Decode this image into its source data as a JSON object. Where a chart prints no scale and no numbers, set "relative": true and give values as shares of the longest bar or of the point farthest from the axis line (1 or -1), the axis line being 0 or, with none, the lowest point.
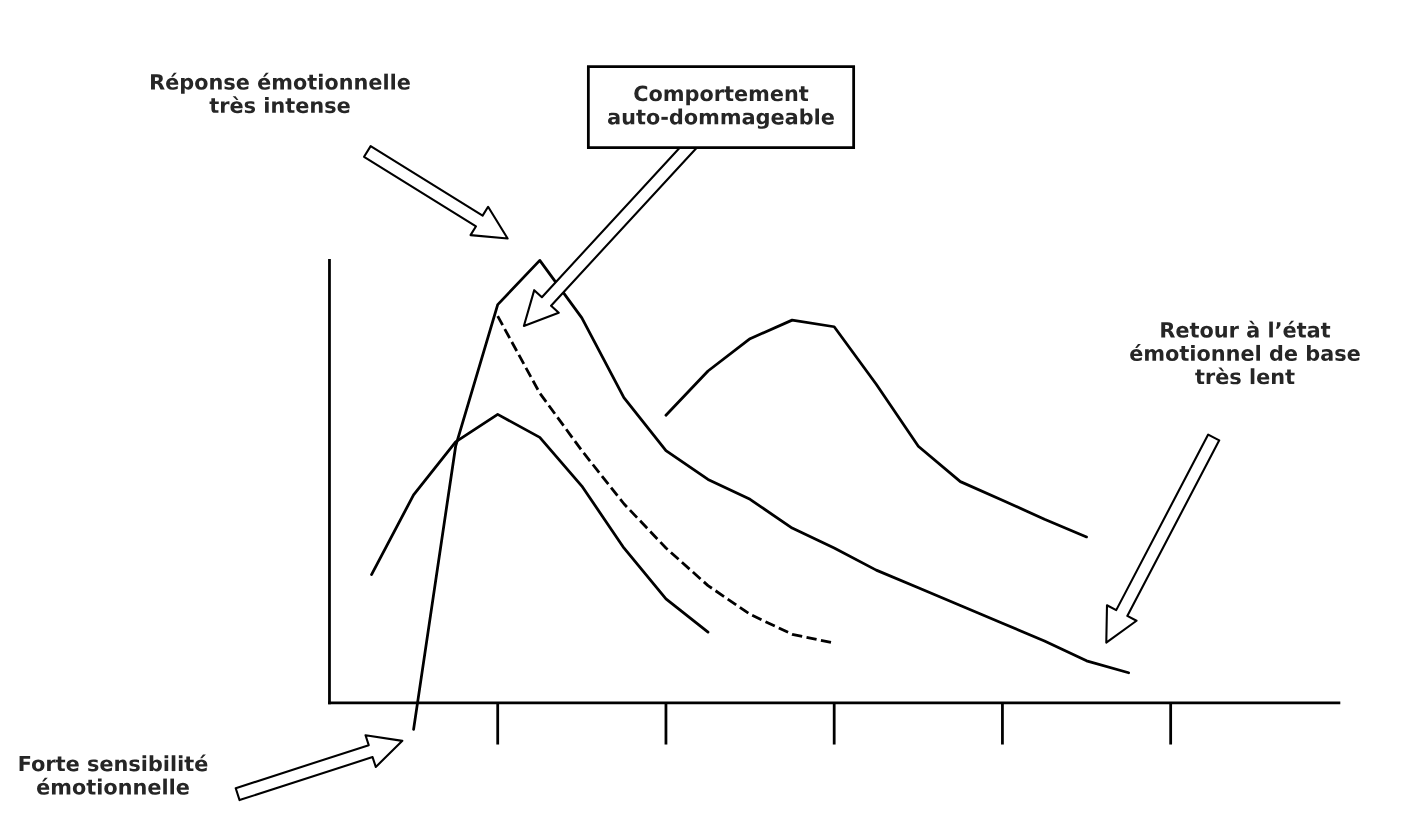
{
  "chart_data": {
    "type": "line",
    "relative": true,
    "legend": false,
    "grid": false,
    "marker": "none",
    "categories": [
      null,
      null,
      null,
      null,
      null,
      null,
      null,
      null,
      null,
      null,
      null,
      null,
      null,
      null,
      null,
      null,
      null,
      null,
      null,
      null,
      null,
      null,
      null,
      null,
      null
    ],
    "series": [
      {
        "color": "#000000",
        "line_style": "solid",
        "values": [
          null,
          null,
          -0.06,
          0.58,
          0.9,
          1.0,
          0.87,
          0.69,
          0.57,
          0.505,
          0.46,
          0.395,
          0.35,
          0.3,
          0.26,
          0.22,
          0.18,
          0.14,
          0.095,
          0.068,
          null,
          null,
          null,
          null,
          null
        ]
      },
      {
        "color": "#000000",
        "line_style": "solid",
        "values": [
          null,
          0.29,
          0.47,
          0.59,
          0.652,
          0.6,
          0.49,
          0.35,
          0.235,
          0.16,
          null,
          null,
          null,
          null,
          null,
          null,
          null,
          null,
          null,
          null,
          null,
          null,
          null,
          null,
          null
        ]
      },
      {
        "color": "#000000",
        "line_style": "dashed",
        "values": [
          null,
          null,
          null,
          null,
          0.874,
          0.7,
          0.57,
          0.45,
          0.35,
          0.265,
          0.2,
          0.155,
          0.135,
          null,
          null,
          null,
          null,
          null,
          null,
          null,
          null,
          null,
          null,
          null,
          null
        ]
      },
      {
        "color": "#000000",
        "line_style": "solid",
        "values": [
          null,
          null,
          null,
          null,
          null,
          null,
          null,
          null,
          0.65,
          0.75,
          0.823,
          0.865,
          0.85,
          0.72,
          0.58,
          0.5,
          0.458,
          0.415,
          0.375,
          null,
          null,
          null,
          null,
          null,
          null
        ]
      }
    ],
    "annotations": [
      "Réponse émotionnelle\ntrès intense",
      "Comportement\nauto-dommageable",
      "Retour à l’état\némotionnel de base\ntrès lent",
      "Forte sensibilité\némotionnelle"
    ]
  }
}
